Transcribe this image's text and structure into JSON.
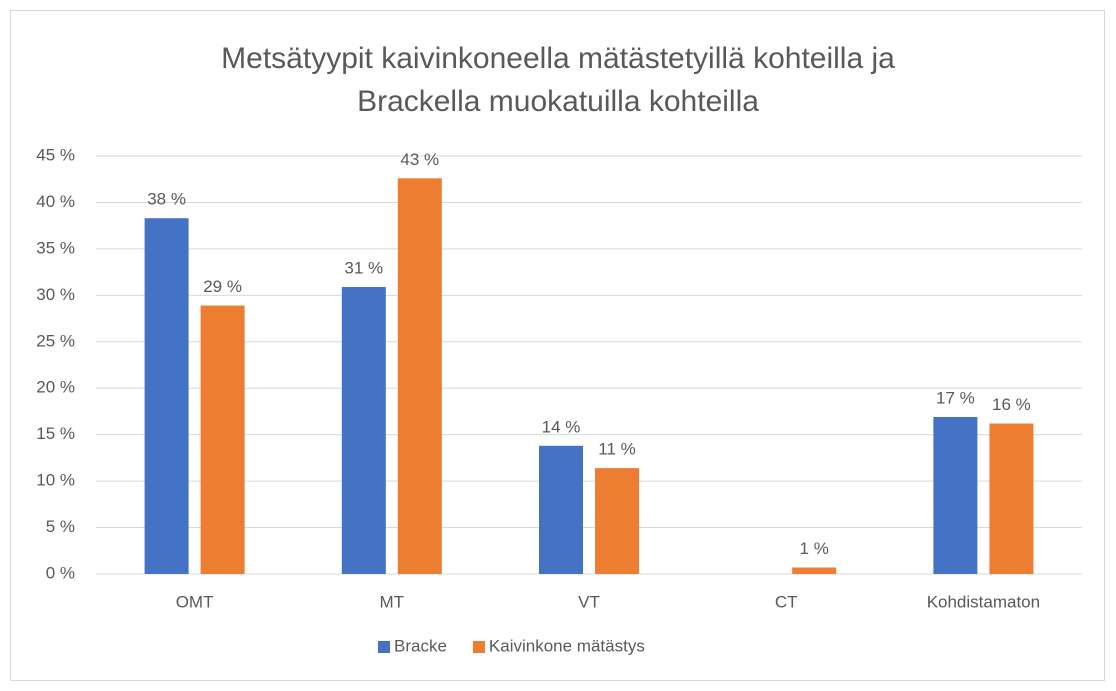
{
  "chart_data": {
    "type": "bar",
    "title": [
      "Metsätyypit kaivinkoneella mätästetyillä kohteilla ja",
      "Brackella muokatuilla kohteilla"
    ],
    "categories": [
      "OMT",
      "MT",
      "VT",
      "CT",
      "Kohdistamaton"
    ],
    "series": [
      {
        "name": "Bracke",
        "color": "#4472c4",
        "values": [
          38.3,
          30.9,
          13.8,
          null,
          16.9
        ],
        "value_labels": [
          "38 %",
          "31 %",
          "14 %",
          null,
          "17 %"
        ]
      },
      {
        "name": "Kaivinkone mätästys",
        "color": "#ed7d31",
        "values": [
          28.9,
          42.6,
          11.4,
          0.7,
          16.2
        ],
        "value_labels": [
          "29 %",
          "43 %",
          "11 %",
          "1 %",
          "16 %"
        ]
      }
    ],
    "ylim": [
      0,
      45
    ],
    "yticks": [
      {
        "value": 0,
        "label": "0 %"
      },
      {
        "value": 5,
        "label": "5 %"
      },
      {
        "value": 10,
        "label": "10 %"
      },
      {
        "value": 15,
        "label": "15 %"
      },
      {
        "value": 20,
        "label": "20 %"
      },
      {
        "value": 25,
        "label": "25 %"
      },
      {
        "value": 30,
        "label": "30 %"
      },
      {
        "value": 35,
        "label": "35 %"
      },
      {
        "value": 40,
        "label": "40 %"
      },
      {
        "value": 45,
        "label": "45 %"
      }
    ],
    "grid": true,
    "legend": "bottom"
  }
}
